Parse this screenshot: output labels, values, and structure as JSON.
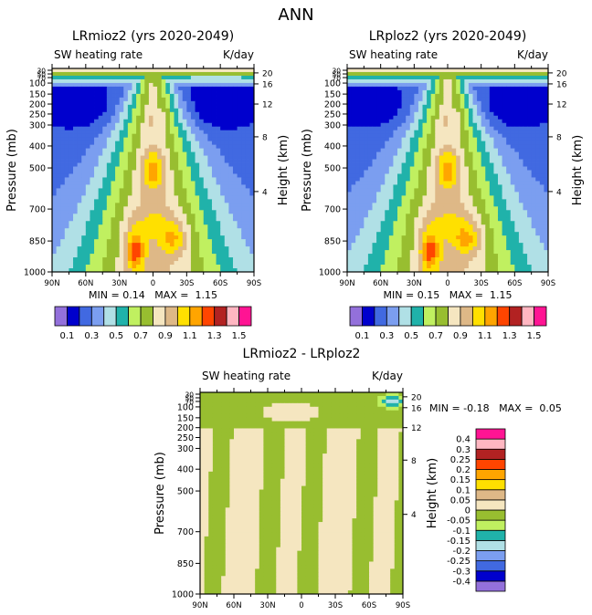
{
  "title": "ANN",
  "colors": [
    "#9370DB",
    "#0000CD",
    "#4169E1",
    "#7B9EF0",
    "#B0E0E6",
    "#20B2AA",
    "#C0F060",
    "#98BE30",
    "#F5E6C0",
    "#DEB887",
    "#FFE000",
    "#FFA500",
    "#FF4500",
    "#B22222",
    "#FFB6C1",
    "#FF1493"
  ],
  "chart_data": [
    {
      "type": "heatmap",
      "title": "LRmioz2 (yrs 2020-2049)",
      "left_string": "SW heating rate",
      "right_string": "K/day",
      "ylabel": "Pressure (mb)",
      "ylabel_right": "Height (km)",
      "x_ticks": [
        "90N",
        "60N",
        "30N",
        "0",
        "30S",
        "60S",
        "90S"
      ],
      "y_ticks": [
        "30",
        "50",
        "70",
        "100",
        "150",
        "200",
        "250",
        "300",
        "400",
        "500",
        "700",
        "850",
        "1000"
      ],
      "y_ticks_right": [
        "20",
        "16",
        "12",
        "8",
        "4"
      ],
      "min_label": "MIN =",
      "min": "0.14",
      "max_label": "MAX =",
      "max": "1.15",
      "levels": [
        0.1,
        0.2,
        0.3,
        0.4,
        0.5,
        0.6,
        0.7,
        0.8,
        0.9,
        1.0,
        1.1,
        1.2,
        1.3,
        1.4,
        1.5
      ],
      "colorbar_labels": [
        "0.1",
        "0.3",
        "0.5",
        "0.7",
        "0.9",
        "1.1",
        "1.3",
        "1.5"
      ],
      "field": "mean"
    },
    {
      "type": "heatmap",
      "title": "LRploz2 (yrs 2020-2049)",
      "left_string": "SW heating rate",
      "right_string": "K/day",
      "ylabel": "Pressure (mb)",
      "ylabel_right": "Height (km)",
      "x_ticks": [
        "90N",
        "60N",
        "30N",
        "0",
        "30S",
        "60S",
        "90S"
      ],
      "y_ticks": [
        "30",
        "50",
        "70",
        "100",
        "150",
        "200",
        "250",
        "300",
        "400",
        "500",
        "700",
        "850",
        "1000"
      ],
      "y_ticks_right": [
        "20",
        "16",
        "12",
        "8",
        "4"
      ],
      "min_label": "MIN =",
      "min": "0.15",
      "max_label": "MAX =",
      "max": "1.15",
      "levels": [
        0.1,
        0.2,
        0.3,
        0.4,
        0.5,
        0.6,
        0.7,
        0.8,
        0.9,
        1.0,
        1.1,
        1.2,
        1.3,
        1.4,
        1.5
      ],
      "colorbar_labels": [
        "0.1",
        "0.3",
        "0.5",
        "0.7",
        "0.9",
        "1.1",
        "1.3",
        "1.5"
      ],
      "field": "mean"
    },
    {
      "type": "heatmap",
      "title": "LRmioz2 - LRploz2",
      "left_string": "SW heating rate",
      "right_string": "K/day",
      "ylabel": "Pressure (mb)",
      "ylabel_right": "Height (km)",
      "x_ticks": [
        "90N",
        "60N",
        "30N",
        "0",
        "30S",
        "60S",
        "90S"
      ],
      "y_ticks": [
        "30",
        "50",
        "70",
        "100",
        "150",
        "200",
        "250",
        "300",
        "400",
        "500",
        "700",
        "850",
        "1000"
      ],
      "y_ticks_right": [
        "20",
        "16",
        "12",
        "8",
        "4"
      ],
      "min_label": "MIN =",
      "min": "-0.18",
      "max_label": "MAX =",
      "max": "0.05",
      "levels": [
        -0.4,
        -0.3,
        -0.25,
        -0.2,
        -0.15,
        -0.1,
        -0.05,
        0,
        0.05,
        0.1,
        0.15,
        0.2,
        0.25,
        0.3,
        0.4
      ],
      "colorbar_labels": [
        "0.4",
        "0.3",
        "0.25",
        "0.2",
        "0.15",
        "0.1",
        "0.05",
        "0",
        "-0.05",
        "-0.1",
        "-0.15",
        "-0.2",
        "-0.25",
        "-0.3",
        "-0.4"
      ],
      "field": "diff"
    }
  ]
}
